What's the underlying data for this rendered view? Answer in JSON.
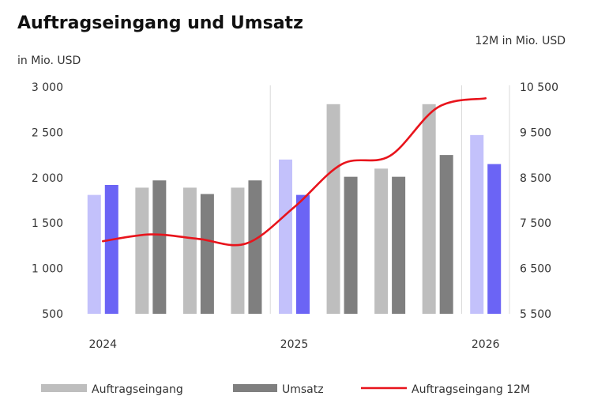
{
  "chart_data": {
    "type": "bar",
    "title": "Auftragseingang und Umsatz",
    "ylabel_left": "in Mio. USD",
    "ylabel_right": "12M in Mio. USD",
    "ylim_left": [
      500,
      3000
    ],
    "yticks_left": [
      "3 000",
      "2 500",
      "2 000",
      "1 500",
      "1 000",
      "500"
    ],
    "ylim_right": [
      5500,
      10500
    ],
    "yticks_right": [
      "10 500",
      "9 500",
      "8 500",
      "7 500",
      "6 500",
      "5 500"
    ],
    "year_labels": [
      "2024",
      "2025",
      "2026"
    ],
    "series": [
      {
        "name": "Auftragseingang",
        "values": [
          1810,
          1890,
          1890,
          1890,
          2200,
          2810,
          2100,
          2810,
          2470
        ],
        "colors": [
          "#c3c1fb",
          "#bebebe",
          "#bebebe",
          "#bebebe",
          "#c3c1fb",
          "#bebebe",
          "#bebebe",
          "#bebebe",
          "#c3c1fb"
        ]
      },
      {
        "name": "Umsatz",
        "values": [
          1920,
          1970,
          1820,
          1970,
          1810,
          2010,
          2010,
          2250,
          2150
        ],
        "colors": [
          "#6b64f5",
          "#7f7f7f",
          "#7f7f7f",
          "#7f7f7f",
          "#6b64f5",
          "#7f7f7f",
          "#7f7f7f",
          "#7f7f7f",
          "#6b64f5"
        ]
      },
      {
        "name": "Auftragseingang 12M",
        "axis": "right",
        "values": [
          7100,
          7250,
          7150,
          7050,
          7850,
          8800,
          8980,
          10050,
          10250
        ],
        "color": "#e8141c"
      }
    ],
    "legend": [
      {
        "label": "Auftragseingang",
        "color": "#bebebe",
        "kind": "bar"
      },
      {
        "label": "Umsatz",
        "color": "#7f7f7f",
        "kind": "bar"
      },
      {
        "label": "Auftragseingang 12M",
        "color": "#e8141c",
        "kind": "line"
      }
    ],
    "legend_placement": "bottom",
    "grid": false
  }
}
